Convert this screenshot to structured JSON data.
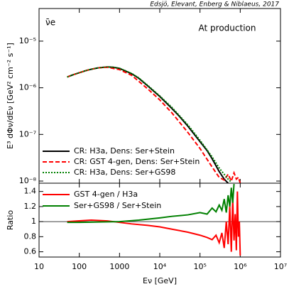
{
  "chart_data": [
    {
      "type": "line",
      "annotations": [
        "Edsjö, Elevant, Enberg & Niblaeus, 2017",
        "ν̄e",
        "At production"
      ],
      "ylabel": "E³ dΦν/dEν [GeV² cm⁻² s⁻¹]",
      "xscale": "log",
      "yscale": "log",
      "xlim": [
        10,
        10000000
      ],
      "ylim": [
        9e-09,
        5e-05
      ],
      "yticks": [
        {
          "value": 1e-08,
          "label": "10⁻⁸"
        },
        {
          "value": 1e-07,
          "label": "10⁻⁷"
        },
        {
          "value": 1e-06,
          "label": "10⁻⁶"
        },
        {
          "value": 1e-05,
          "label": "10⁻⁵"
        }
      ],
      "legend": "lower left",
      "series": [
        {
          "name": "CR: H3a, Dens: Ser+Stein",
          "color": "#000000",
          "dash": "solid",
          "x": [
            50,
            70,
            100,
            150,
            200,
            300,
            500,
            700,
            1000,
            2000,
            3000,
            5000,
            10000,
            20000,
            30000,
            50000,
            100000,
            150000,
            200000,
            300000,
            400000,
            500000
          ],
          "values": [
            1.7e-06,
            1.9e-06,
            2.1e-06,
            2.35e-06,
            2.5e-06,
            2.68e-06,
            2.8e-06,
            2.75e-06,
            2.6e-06,
            2e-06,
            1.6e-06,
            1.1e-06,
            6.5e-07,
            3.6e-07,
            2.5e-07,
            1.5e-07,
            7e-08,
            4.5e-08,
            3e-08,
            1.6e-08,
            1.1e-08,
            9e-09
          ]
        },
        {
          "name": "CR: GST 4-gen, Dens: Ser+Stein",
          "color": "#ff0000",
          "dash": "dashed",
          "x": [
            50,
            70,
            100,
            150,
            200,
            300,
            500,
            1000,
            2000,
            5000,
            10000,
            20000,
            50000,
            100000,
            200000,
            300000,
            400000,
            500000,
            600000,
            700000,
            800000,
            900000,
            1000000
          ],
          "values": [
            1.7e-06,
            1.9e-06,
            2.1e-06,
            2.35e-06,
            2.5e-06,
            2.68e-06,
            2.75e-06,
            2.45e-06,
            1.85e-06,
            9.5e-07,
            5.5e-07,
            2.9e-07,
            1.1e-07,
            5e-08,
            2e-08,
            1.2e-08,
            1.05e-08,
            1.4e-08,
            1e-08,
            1.5e-08,
            1.1e-08,
            1.2e-08,
            9e-09
          ]
        },
        {
          "name": "CR: H3a, Dens: Ser+GS98",
          "color": "#008000",
          "dash": "dotted",
          "x": [
            50,
            70,
            100,
            150,
            200,
            300,
            500,
            700,
            1000,
            2000,
            3000,
            5000,
            10000,
            20000,
            50000,
            100000,
            200000,
            300000,
            500000,
            600000
          ],
          "values": [
            1.7e-06,
            1.9e-06,
            2.1e-06,
            2.35e-06,
            2.5e-06,
            2.68e-06,
            2.8e-06,
            2.76e-06,
            2.62e-06,
            2.03e-06,
            1.63e-06,
            1.13e-06,
            6.7e-07,
            3.8e-07,
            1.6e-07,
            7.5e-08,
            3.3e-08,
            1.9e-08,
            1.1e-08,
            9.5e-09
          ]
        }
      ]
    },
    {
      "type": "line",
      "ylabel": "Ratio",
      "xlabel": "Eν [GeV]",
      "xscale": "log",
      "xlim": [
        10,
        10000000
      ],
      "xticks": [
        10,
        100,
        1000,
        {
          "value": 10000,
          "label": "10⁴"
        },
        {
          "value": 100000,
          "label": "10⁵"
        },
        {
          "value": 1000000,
          "label": "10⁶"
        },
        {
          "value": 10000000,
          "label": "10⁷"
        }
      ],
      "ylim": [
        0.53,
        1.51
      ],
      "yticks": [
        0.6,
        0.8,
        1,
        1.2,
        1.4
      ],
      "hline": 1,
      "legend": "upper left",
      "series": [
        {
          "name": "GST 4-gen / H3a",
          "color": "#ff0000",
          "dash": "solid",
          "x": [
            50,
            100,
            200,
            500,
            1000,
            2000,
            5000,
            10000,
            20000,
            50000,
            100000,
            150000,
            200000,
            250000,
            300000,
            350000,
            400000,
            450000,
            500000,
            550000,
            600000,
            650000,
            700000,
            750000,
            800000,
            850000,
            900000,
            950000,
            1000000
          ],
          "values": [
            1.0,
            1.01,
            1.02,
            1.01,
            0.99,
            0.97,
            0.95,
            0.93,
            0.9,
            0.86,
            0.82,
            0.79,
            0.76,
            0.82,
            0.72,
            0.85,
            0.65,
            1.0,
            0.7,
            1.2,
            0.6,
            1.3,
            0.75,
            1.1,
            0.62,
            1.4,
            0.8,
            1.0,
            0.55
          ]
        },
        {
          "name": "Ser+GS98 / Ser+Stein",
          "color": "#008000",
          "dash": "solid",
          "x": [
            50,
            100,
            300,
            1000,
            3000,
            10000,
            20000,
            50000,
            100000,
            150000,
            200000,
            250000,
            300000,
            350000,
            400000,
            450000,
            500000,
            550000,
            600000,
            650000,
            700000
          ],
          "values": [
            0.99,
            0.99,
            0.995,
            1.0,
            1.02,
            1.05,
            1.07,
            1.09,
            1.12,
            1.1,
            1.18,
            1.13,
            1.22,
            1.15,
            1.3,
            1.12,
            1.35,
            1.2,
            1.45,
            1.25,
            1.5
          ]
        }
      ]
    }
  ]
}
